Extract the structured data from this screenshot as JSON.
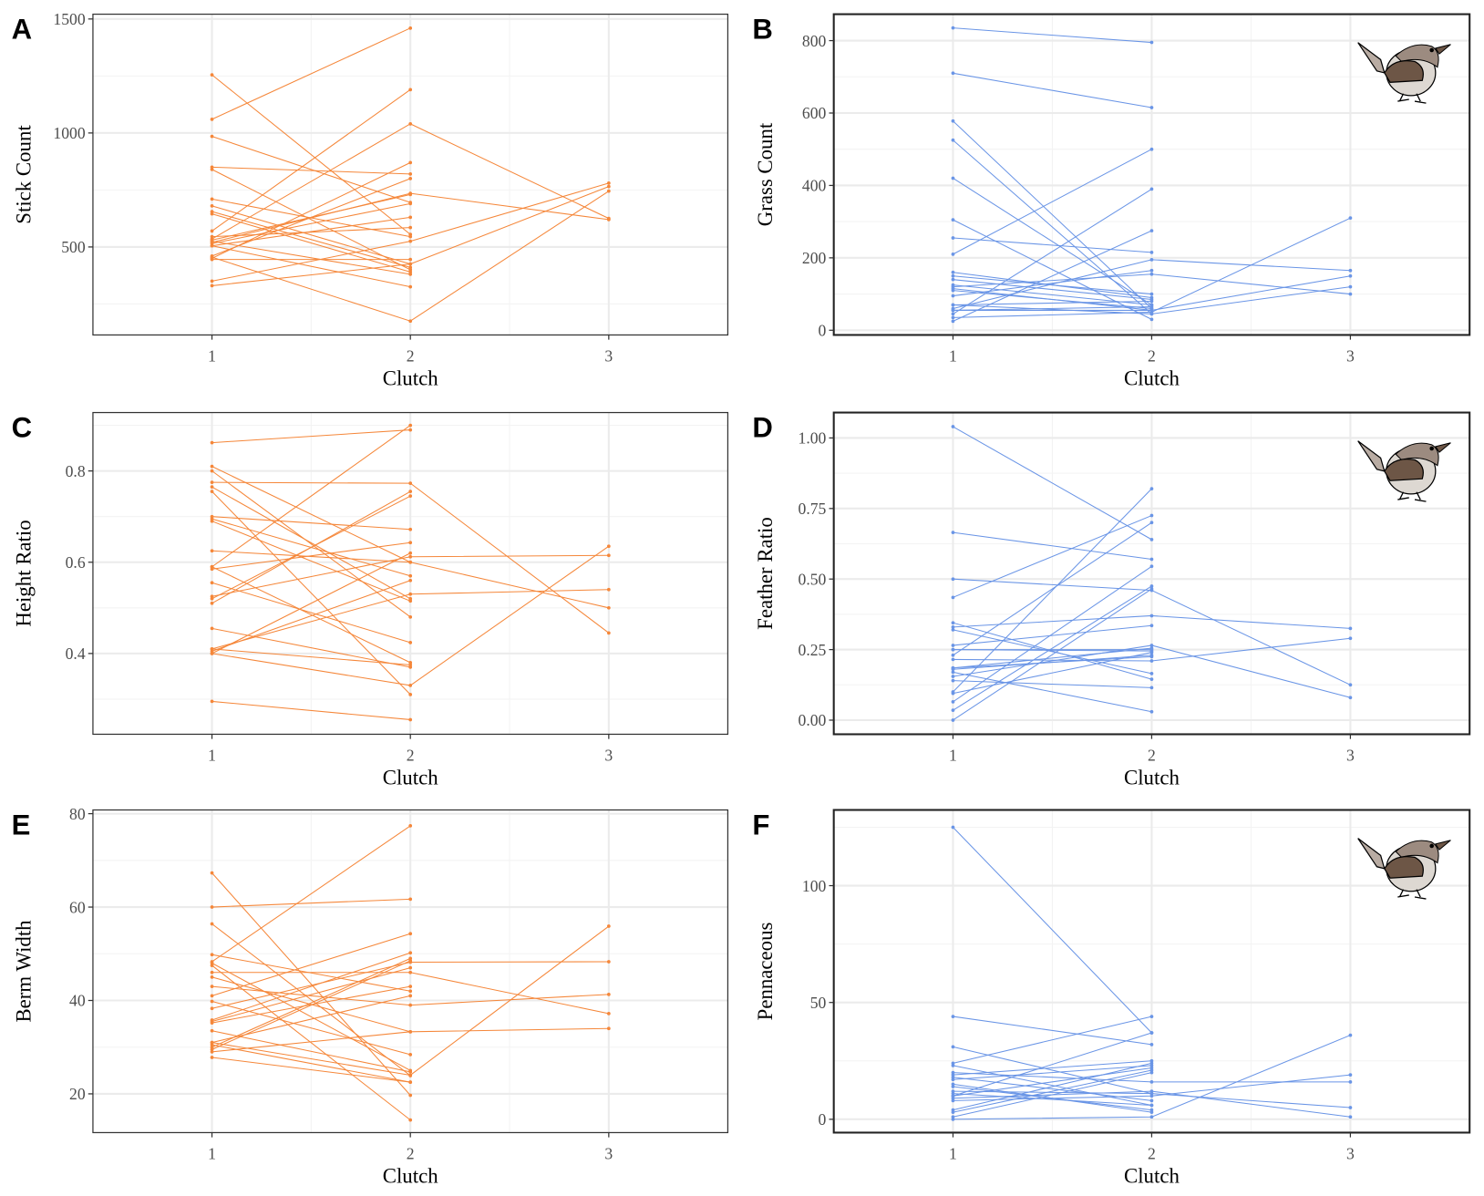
{
  "colors": {
    "orange": "#F5873A",
    "blue": "#6A95E6",
    "grid_major": "#EBEBEB",
    "grid_minor": "#F3F3F3"
  },
  "chart_data": [
    {
      "panel": "A",
      "type": "line",
      "xlabel": "Clutch",
      "ylabel": "Stick Count",
      "x": [
        1,
        2,
        3
      ],
      "xticks": [
        "1",
        "2",
        "3"
      ],
      "xlim": [
        0.4,
        3.6
      ],
      "ylim": [
        114,
        1521
      ],
      "yticks": [
        500,
        1000,
        1500
      ],
      "yminor": [
        250,
        750,
        1250
      ],
      "color": "orange",
      "bird": false,
      "grid": true,
      "series": [
        [
          1060,
          1460,
          null
        ],
        [
          1255,
          555,
          null
        ],
        [
          985,
          695,
          null
        ],
        [
          850,
          820,
          null
        ],
        [
          840,
          400,
          null
        ],
        [
          570,
          1190,
          null
        ],
        [
          535,
          1040,
          625
        ],
        [
          450,
          870,
          null
        ],
        [
          460,
          800,
          null
        ],
        [
          520,
          735,
          620
        ],
        [
          530,
          730,
          null
        ],
        [
          515,
          690,
          null
        ],
        [
          505,
          630,
          null
        ],
        [
          545,
          585,
          null
        ],
        [
          710,
          545,
          null
        ],
        [
          680,
          425,
          null
        ],
        [
          655,
          410,
          null
        ],
        [
          645,
          390,
          null
        ],
        [
          525,
          380,
          null
        ],
        [
          455,
          175,
          745
        ],
        [
          330,
          425,
          765
        ],
        [
          350,
          525,
          780
        ],
        [
          505,
          325,
          null
        ],
        [
          445,
          445,
          null
        ]
      ]
    },
    {
      "panel": "B",
      "type": "line",
      "xlabel": "Clutch",
      "ylabel": "Grass Count",
      "x": [
        1,
        2,
        3
      ],
      "xticks": [
        "1",
        "2",
        "3"
      ],
      "xlim": [
        0.4,
        3.6
      ],
      "ylim": [
        -13,
        873
      ],
      "yticks": [
        0,
        200,
        400,
        600,
        800
      ],
      "yminor": [
        100,
        300,
        500,
        700
      ],
      "color": "blue",
      "bird": true,
      "grid": true,
      "series": [
        [
          835,
          795,
          null
        ],
        [
          710,
          615,
          null
        ],
        [
          578,
          60,
          null
        ],
        [
          525,
          45,
          null
        ],
        [
          420,
          70,
          null
        ],
        [
          305,
          30,
          null
        ],
        [
          255,
          215,
          null
        ],
        [
          210,
          500,
          null
        ],
        [
          45,
          390,
          null
        ],
        [
          25,
          275,
          null
        ],
        [
          60,
          195,
          165
        ],
        [
          120,
          155,
          100
        ],
        [
          35,
          50,
          310
        ],
        [
          55,
          55,
          150
        ],
        [
          70,
          45,
          120
        ],
        [
          160,
          90,
          null
        ],
        [
          150,
          100,
          null
        ],
        [
          140,
          85,
          null
        ],
        [
          125,
          70,
          null
        ],
        [
          115,
          55,
          null
        ],
        [
          95,
          165,
          null
        ],
        [
          70,
          80,
          null
        ],
        [
          55,
          65,
          null
        ],
        [
          110,
          60,
          null
        ]
      ]
    },
    {
      "panel": "C",
      "type": "line",
      "xlabel": "Clutch",
      "ylabel": "Height Ratio",
      "x": [
        1,
        2,
        3
      ],
      "xticks": [
        "1",
        "2",
        "3"
      ],
      "xlim": [
        0.4,
        3.6
      ],
      "ylim": [
        0.223,
        0.928
      ],
      "yticks": [
        0.4,
        0.6,
        0.8
      ],
      "yminor": [
        0.3,
        0.5,
        0.7,
        0.9
      ],
      "color": "orange",
      "bird": false,
      "grid": true,
      "series": [
        [
          0.862,
          0.89,
          null
        ],
        [
          0.81,
          0.6,
          null
        ],
        [
          0.8,
          0.48,
          null
        ],
        [
          0.775,
          0.773,
          0.445
        ],
        [
          0.765,
          0.52,
          null
        ],
        [
          0.755,
          0.31,
          null
        ],
        [
          0.7,
          0.672,
          null
        ],
        [
          0.695,
          0.57,
          null
        ],
        [
          0.69,
          0.515,
          null
        ],
        [
          0.625,
          0.6,
          0.5
        ],
        [
          0.59,
          0.9,
          null
        ],
        [
          0.585,
          0.643,
          null
        ],
        [
          0.555,
          0.424,
          null
        ],
        [
          0.525,
          0.612,
          0.615
        ],
        [
          0.52,
          0.745,
          null
        ],
        [
          0.51,
          0.755,
          null
        ],
        [
          0.59,
          0.38,
          null
        ],
        [
          0.455,
          0.37,
          null
        ],
        [
          0.41,
          0.375,
          null
        ],
        [
          0.405,
          0.56,
          null
        ],
        [
          0.4,
          0.62,
          null
        ],
        [
          0.4,
          0.33,
          0.635
        ],
        [
          0.41,
          0.53,
          0.54
        ],
        [
          0.295,
          0.255,
          null
        ]
      ]
    },
    {
      "panel": "D",
      "type": "line",
      "xlabel": "Clutch",
      "ylabel": "Feather Ratio",
      "x": [
        1,
        2,
        3
      ],
      "xticks": [
        "1",
        "2",
        "3"
      ],
      "xlim": [
        0.4,
        3.6
      ],
      "ylim": [
        -0.05,
        1.09
      ],
      "yticks": [
        0,
        0.25,
        0.5,
        0.75,
        1.0
      ],
      "ytick_labels": [
        "0.00",
        "0.25",
        "0.50",
        "0.75",
        "1.00"
      ],
      "yminor": [
        0.125,
        0.375,
        0.625,
        0.875
      ],
      "color": "blue",
      "bird": true,
      "grid": true,
      "series": [
        [
          1.04,
          0.64,
          null
        ],
        [
          0.665,
          0.57,
          null
        ],
        [
          0.5,
          0.46,
          0.125
        ],
        [
          0.435,
          0.725,
          null
        ],
        [
          0.345,
          0.145,
          null
        ],
        [
          0.33,
          0.37,
          0.325
        ],
        [
          0.32,
          0.165,
          null
        ],
        [
          0.265,
          0.335,
          null
        ],
        [
          0.25,
          0.25,
          null
        ],
        [
          0.25,
          0.245,
          null
        ],
        [
          0.23,
          0.7,
          null
        ],
        [
          0.215,
          0.21,
          0.29
        ],
        [
          0.185,
          0.255,
          null
        ],
        [
          0.18,
          0.23,
          null
        ],
        [
          0.155,
          0.265,
          0.08
        ],
        [
          0.14,
          0.115,
          null
        ],
        [
          0.17,
          0.03,
          null
        ],
        [
          0.1,
          0.82,
          null
        ],
        [
          0.095,
          0.24,
          null
        ],
        [
          0.065,
          0.545,
          null
        ],
        [
          0.035,
          0.475,
          null
        ],
        [
          0.0,
          0.465,
          null
        ],
        [
          0.185,
          0.225,
          null
        ]
      ]
    },
    {
      "panel": "E",
      "type": "line",
      "xlabel": "Clutch",
      "ylabel": "Berm Width",
      "x": [
        1,
        2,
        3
      ],
      "xticks": [
        "1",
        "2",
        "3"
      ],
      "xlim": [
        0.4,
        3.6
      ],
      "ylim": [
        11.7,
        80.8
      ],
      "yticks": [
        20,
        40,
        60,
        80
      ],
      "yminor": [
        30,
        50,
        70
      ],
      "color": "orange",
      "bird": false,
      "grid": true,
      "series": [
        [
          67.3,
          19.7,
          null
        ],
        [
          60,
          61.7,
          null
        ],
        [
          56.4,
          23.9,
          null
        ],
        [
          49.8,
          42,
          null
        ],
        [
          48.3,
          77.4,
          null
        ],
        [
          48,
          25,
          null
        ],
        [
          47.5,
          14.4,
          null
        ],
        [
          46,
          46,
          37.2
        ],
        [
          45,
          33.3,
          34
        ],
        [
          43,
          39,
          41.3
        ],
        [
          41,
          54.3,
          null
        ],
        [
          39.8,
          28.4,
          null
        ],
        [
          38.3,
          48.2,
          48.3
        ],
        [
          35.8,
          50.2,
          null
        ],
        [
          35.5,
          47,
          null
        ],
        [
          35.2,
          43,
          null
        ],
        [
          33.5,
          24.7,
          null
        ],
        [
          31,
          41,
          null
        ],
        [
          30.5,
          22.5,
          null
        ],
        [
          30,
          49,
          null
        ],
        [
          29.5,
          48.5,
          null
        ],
        [
          29,
          33.3,
          null
        ],
        [
          27.8,
          22.5,
          null
        ],
        [
          31,
          24,
          55.9
        ]
      ]
    },
    {
      "panel": "F",
      "type": "line",
      "xlabel": "Clutch",
      "ylabel": "Pennaceous",
      "x": [
        1,
        2,
        3
      ],
      "xticks": [
        "1",
        "2",
        "3"
      ],
      "xlim": [
        0.4,
        3.6
      ],
      "ylim": [
        -5.7,
        132.4
      ],
      "yticks": [
        0,
        50,
        100
      ],
      "yminor": [
        25,
        75,
        125
      ],
      "color": "blue",
      "bird": true,
      "grid": true,
      "series": [
        [
          125,
          37,
          null
        ],
        [
          44,
          32,
          null
        ],
        [
          31,
          11,
          null
        ],
        [
          24,
          44,
          null
        ],
        [
          23,
          6,
          null
        ],
        [
          20,
          16,
          16
        ],
        [
          19,
          25,
          null
        ],
        [
          18,
          8,
          null
        ],
        [
          17,
          23,
          null
        ],
        [
          14,
          4,
          null
        ],
        [
          12,
          11,
          5
        ],
        [
          10,
          37,
          null
        ],
        [
          10,
          22,
          null
        ],
        [
          9,
          12,
          1
        ],
        [
          11,
          6,
          null
        ],
        [
          4,
          24,
          null
        ],
        [
          3,
          21,
          null
        ],
        [
          1,
          20,
          null
        ],
        [
          0,
          1,
          36
        ],
        [
          8,
          10,
          19
        ],
        [
          15,
          3,
          null
        ]
      ]
    }
  ]
}
